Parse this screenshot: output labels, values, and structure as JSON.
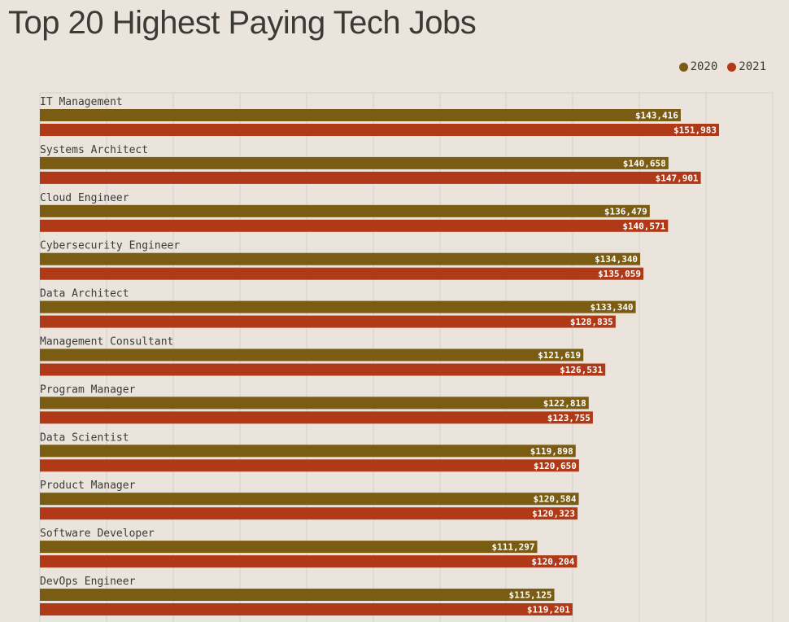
{
  "chart_data": {
    "type": "bar",
    "orientation": "horizontal",
    "title": "Top 20 Highest Paying Tech Jobs",
    "categories": [
      "IT Management",
      "Systems Architect",
      "Cloud Engineer",
      "Cybersecurity Engineer",
      "Data Architect",
      "Management Consultant",
      "Program Manager",
      "Data Scientist",
      "Product Manager",
      "Software Developer",
      "DevOps Engineer"
    ],
    "series": [
      {
        "name": "2020",
        "color": "#7a5c12",
        "values": [
          143416,
          140658,
          136479,
          134340,
          133340,
          121619,
          122818,
          119898,
          120584,
          111297,
          115125
        ],
        "labels": [
          "$143,416",
          "$140,658",
          "$136,479",
          "$134,340",
          "$133,340",
          "$121,619",
          "$122,818",
          "$119,898",
          "$120,584",
          "$111,297",
          "$115,125"
        ]
      },
      {
        "name": "2021",
        "color": "#b03a17",
        "values": [
          151983,
          147901,
          140571,
          135059,
          128835,
          126531,
          123755,
          120650,
          120323,
          120204,
          119201
        ],
        "labels": [
          "$151,983",
          "$147,901",
          "$140,571",
          "$135,059",
          "$128,835",
          "$126,531",
          "$123,755",
          "$120,650",
          "$120,323",
          "$120,204",
          "$119,201"
        ]
      }
    ],
    "xlim": [
      0,
      165000
    ],
    "grid": true,
    "legend_position": "top-right"
  },
  "colors": {
    "background": "#ebe4dc",
    "gridline": "#d5d1cf",
    "text": "#3c3a37"
  }
}
